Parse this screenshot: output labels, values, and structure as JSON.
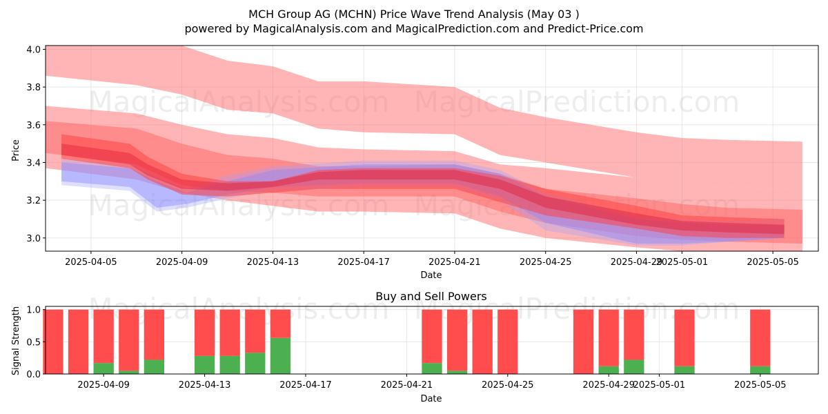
{
  "chart_data": [
    {
      "type": "area",
      "title": "MCH Group AG (MCHN) Price Wave Trend Analysis (May 03 )",
      "subtitle": "powered by MagicalAnalysis.com and MagicalPrediction.com and Predict-Price.com",
      "xlabel": "Date",
      "ylabel": "Price",
      "xlim_days": [
        0,
        34
      ],
      "ylim": [
        2.93,
        4.02
      ],
      "x_ticks": [
        {
          "day": 2,
          "label": "2025-04-05"
        },
        {
          "day": 6,
          "label": "2025-04-09"
        },
        {
          "day": 10,
          "label": "2025-04-13"
        },
        {
          "day": 14,
          "label": "2025-04-17"
        },
        {
          "day": 18,
          "label": "2025-04-21"
        },
        {
          "day": 22,
          "label": "2025-04-25"
        },
        {
          "day": 26,
          "label": "2025-04-29"
        },
        {
          "day": 28,
          "label": "2025-05-01"
        },
        {
          "day": 32,
          "label": "2025-05-05"
        }
      ],
      "y_ticks": [
        3.0,
        3.2,
        3.4,
        3.6,
        3.8,
        4.0
      ],
      "y_tick_labels": [
        "3.0",
        "3.2",
        "3.4",
        "3.6",
        "3.8",
        "4.0"
      ],
      "series": [
        {
          "name": "red-band-upper",
          "color": "#ff6b6b",
          "opacity": 0.5,
          "x": [
            0,
            4,
            6,
            8,
            10,
            12,
            14,
            18,
            20,
            22,
            26,
            28,
            30,
            33.3
          ],
          "upper": [
            4.03,
            4.03,
            4.02,
            3.94,
            3.91,
            3.83,
            3.83,
            3.8,
            3.69,
            3.64,
            3.56,
            3.53,
            3.52,
            3.51
          ],
          "lower": [
            3.86,
            3.81,
            3.76,
            3.68,
            3.66,
            3.58,
            3.56,
            3.55,
            3.44,
            3.4,
            3.32,
            3.28,
            3.27,
            3.26
          ]
        },
        {
          "name": "red-band-mid",
          "color": "#ff6b6b",
          "opacity": 0.5,
          "x": [
            0,
            4,
            6,
            8,
            10,
            12,
            14,
            18,
            20,
            22,
            26,
            28,
            30,
            33.3
          ],
          "upper": [
            3.7,
            3.66,
            3.6,
            3.55,
            3.53,
            3.48,
            3.47,
            3.46,
            3.39,
            3.37,
            3.32,
            3.28,
            3.27,
            3.26
          ],
          "lower": [
            3.37,
            3.31,
            3.24,
            3.2,
            3.17,
            3.14,
            3.14,
            3.13,
            3.05,
            3.0,
            2.95,
            2.93,
            2.93,
            2.93
          ]
        },
        {
          "name": "red-band-inner-1",
          "color": "#ff5a5a",
          "opacity": 0.45,
          "x": [
            0,
            4,
            6,
            8,
            10,
            12,
            14,
            18,
            20,
            22,
            26,
            28,
            30,
            33.3
          ],
          "upper": [
            3.62,
            3.58,
            3.5,
            3.44,
            3.42,
            3.38,
            3.38,
            3.39,
            3.34,
            3.26,
            3.21,
            3.18,
            3.16,
            3.15
          ],
          "lower": [
            3.45,
            3.39,
            3.28,
            3.25,
            3.24,
            3.22,
            3.22,
            3.22,
            3.14,
            3.08,
            3.01,
            2.99,
            2.98,
            2.97
          ]
        },
        {
          "name": "blue-band-1",
          "color": "#7f7fff",
          "opacity": 0.45,
          "x": [
            0.7,
            3.7,
            4.9,
            6.2,
            8,
            10,
            14,
            18,
            20,
            22,
            26,
            28,
            30,
            32.5
          ],
          "upper": [
            3.4,
            3.37,
            3.3,
            3.24,
            3.3,
            3.36,
            3.39,
            3.39,
            3.34,
            3.22,
            3.1,
            3.08,
            3.07,
            3.07
          ],
          "lower": [
            3.3,
            3.27,
            3.16,
            3.18,
            3.23,
            3.27,
            3.29,
            3.29,
            3.22,
            3.08,
            2.97,
            2.97,
            2.98,
            3.0
          ]
        },
        {
          "name": "blue-band-2",
          "color": "#a0a0ff",
          "opacity": 0.35,
          "x": [
            0.7,
            3.7,
            4.9,
            6.2,
            8,
            10,
            14,
            18,
            20,
            22,
            26,
            28,
            30,
            32.5
          ],
          "upper": [
            3.42,
            3.39,
            3.32,
            3.26,
            3.33,
            3.38,
            3.41,
            3.41,
            3.36,
            3.24,
            3.12,
            3.1,
            3.09,
            3.1
          ],
          "lower": [
            3.28,
            3.25,
            3.14,
            3.16,
            3.21,
            3.25,
            3.27,
            3.27,
            3.2,
            3.04,
            2.96,
            2.96,
            2.98,
            3.0
          ]
        },
        {
          "name": "red-band-inner-2",
          "color": "#ff3b3b",
          "opacity": 0.5,
          "x": [
            0.7,
            3.7,
            4.5,
            6,
            8,
            10,
            12,
            14,
            18,
            20,
            22,
            26,
            28,
            30,
            32.5
          ],
          "upper": [
            3.55,
            3.5,
            3.43,
            3.34,
            3.3,
            3.3,
            3.36,
            3.37,
            3.37,
            3.33,
            3.26,
            3.17,
            3.12,
            3.11,
            3.1
          ],
          "lower": [
            3.42,
            3.37,
            3.31,
            3.23,
            3.22,
            3.24,
            3.26,
            3.26,
            3.26,
            3.19,
            3.12,
            3.05,
            3.01,
            3.0,
            3.0
          ]
        },
        {
          "name": "red-band-core",
          "color": "#e0203a",
          "opacity": 0.45,
          "x": [
            0.7,
            3.7,
            4.5,
            6,
            8,
            10,
            12,
            14,
            18,
            20,
            22,
            26,
            28,
            30,
            32.5
          ],
          "upper": [
            3.5,
            3.45,
            3.39,
            3.31,
            3.29,
            3.3,
            3.35,
            3.36,
            3.36,
            3.31,
            3.22,
            3.13,
            3.09,
            3.08,
            3.07
          ],
          "lower": [
            3.44,
            3.39,
            3.33,
            3.26,
            3.25,
            3.27,
            3.31,
            3.31,
            3.31,
            3.26,
            3.16,
            3.07,
            3.04,
            3.03,
            3.02
          ]
        }
      ]
    },
    {
      "type": "bar",
      "title": "Buy and Sell Powers",
      "xlabel": "Date",
      "ylabel": "Signal Strength",
      "xlim_days": [
        3.7,
        34.3
      ],
      "ylim": [
        0,
        1.05
      ],
      "x_ticks": [
        {
          "day": 6,
          "label": "2025-04-09"
        },
        {
          "day": 10,
          "label": "2025-04-13"
        },
        {
          "day": 14,
          "label": "2025-04-17"
        },
        {
          "day": 18,
          "label": "2025-04-21"
        },
        {
          "day": 22,
          "label": "2025-04-25"
        },
        {
          "day": 26,
          "label": "2025-04-29"
        },
        {
          "day": 28,
          "label": "2025-05-01"
        },
        {
          "day": 32,
          "label": "2025-05-05"
        }
      ],
      "y_ticks": [
        0.0,
        0.5,
        1.0
      ],
      "y_tick_labels": [
        "0.0",
        "0.5",
        "1.0"
      ],
      "buy_color": "#4caf50",
      "sell_color": "#ff4d4d",
      "days": [
        4,
        5,
        6,
        7,
        8,
        10,
        11,
        12,
        13,
        19,
        20,
        21,
        22,
        25,
        26,
        27,
        29,
        32
      ],
      "buy": [
        0.0,
        0.0,
        0.17,
        0.05,
        0.22,
        0.28,
        0.28,
        0.33,
        0.56,
        0.17,
        0.05,
        0.0,
        0.0,
        0.0,
        0.12,
        0.22,
        0.12,
        0.12
      ],
      "sell": [
        1.0,
        1.0,
        0.83,
        0.95,
        0.78,
        0.72,
        0.72,
        0.67,
        0.44,
        0.83,
        0.95,
        1.0,
        1.0,
        1.0,
        0.88,
        0.78,
        0.88,
        0.88
      ]
    }
  ],
  "watermarks": [
    "MagicalAnalysis.com",
    "MagicalPrediction.com"
  ]
}
